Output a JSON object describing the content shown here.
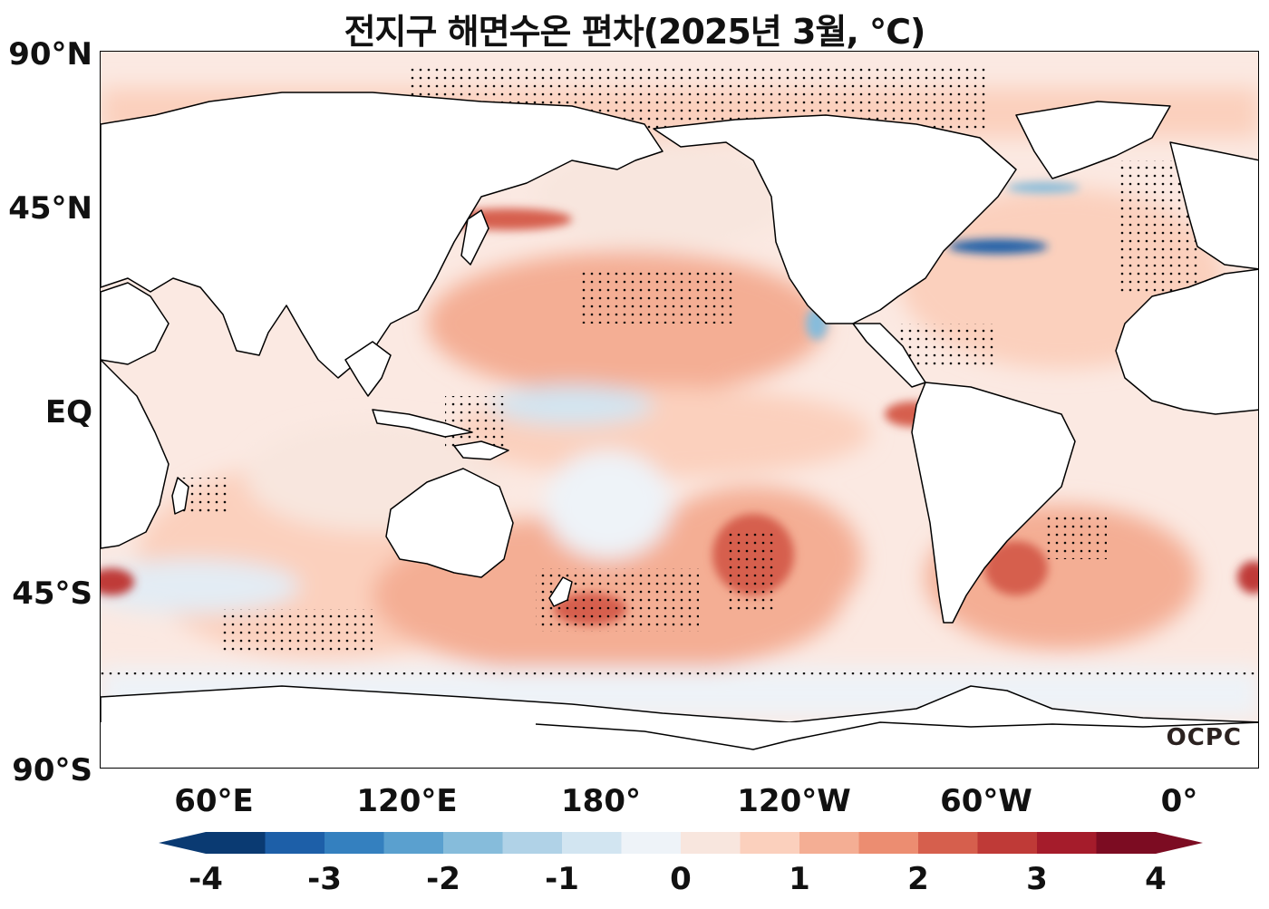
{
  "title": "전지구 해면수온 편차(2025년 3월, ℃)",
  "lat_labels": [
    "90°N",
    "45°N",
    "EQ",
    "45°S",
    "90°S"
  ],
  "lon_labels": [
    "60°E",
    "120°E",
    "180°",
    "120°W",
    "60°W",
    "0°"
  ],
  "logo_text": "OCPC",
  "colorbar": {
    "tick_labels": [
      "-4",
      "-3",
      "-2",
      "-1",
      "0",
      "1",
      "2",
      "3",
      "4"
    ],
    "colors": [
      "#0a3a72",
      "#1d5fa8",
      "#3480bf",
      "#5aa0cf",
      "#86bcdb",
      "#b0d2e7",
      "#d2e5f1",
      "#eef3f8",
      "#f8e6de",
      "#fbd0bd",
      "#f4ae94",
      "#ec8d71",
      "#d65f4d",
      "#bf3a37",
      "#a51c2b",
      "#7c0c22"
    ],
    "extend": "both"
  },
  "map": {
    "projection": "equirectangular, centered 180°",
    "variable": "sea surface temperature anomaly",
    "units": "℃"
  }
}
